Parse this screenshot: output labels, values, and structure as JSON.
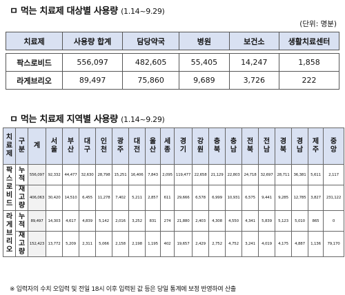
{
  "section1": {
    "title": "ㅁ 먹는 치료제 대상별 사용량",
    "period": "(1.14~9.29)",
    "unit": "(단위: 명분)",
    "headers": [
      "치료제",
      "사용량 합계",
      "담당약국",
      "병원",
      "보건소",
      "생활치료센터"
    ],
    "rows": [
      {
        "name": "팍스로비드",
        "cells": [
          "556,097",
          "482,605",
          "55,405",
          "14,247",
          "1,858"
        ]
      },
      {
        "name": "라게브리오",
        "cells": [
          "89,497",
          "75,860",
          "9,689",
          "3,726",
          "222"
        ]
      }
    ]
  },
  "section2": {
    "title": "ㅁ 먹는 치료제 지역별 사용량",
    "period": "(1.14~9.29)",
    "headers": [
      "치료제",
      "구분",
      "계",
      "서울",
      "부산",
      "대구",
      "인천",
      "광주",
      "대전",
      "울산",
      "세종",
      "경기",
      "강원",
      "충북",
      "충남",
      "전북",
      "전남",
      "경북",
      "경남",
      "제주",
      "중앙"
    ],
    "groups": [
      {
        "drug": "팍스로비드",
        "rows": [
          {
            "kind": "누적",
            "cells": [
              "556,097",
              "92,332",
              "44,477",
              "32,630",
              "28,798",
              "15,251",
              "16,406",
              "7,843",
              "2,095",
              "119,477",
              "22,658",
              "21,129",
              "22,803",
              "24,718",
              "32,697",
              "28,711",
              "36,381",
              "5,611",
              "2,117"
            ]
          },
          {
            "kind": "재고량",
            "cells": [
              "406,063",
              "30,420",
              "14,510",
              "6,455",
              "11,278",
              "7,402",
              "5,211",
              "2,857",
              "611",
              "29,666",
              "6,578",
              "6,999",
              "10,931",
              "6,575",
              "9,441",
              "9,285",
              "12,785",
              "3,827",
              "231,122"
            ]
          }
        ]
      },
      {
        "drug": "라게브리오",
        "rows": [
          {
            "kind": "누적",
            "cells": [
              "89,497",
              "14,303",
              "4,617",
              "4,839",
              "5,142",
              "2,016",
              "3,252",
              "831",
              "274",
              "21,880",
              "2,403",
              "4,308",
              "4,550",
              "4,341",
              "5,839",
              "5,123",
              "5,010",
              "865",
              "0"
            ]
          },
          {
            "kind": "재고량",
            "cells": [
              "152,423",
              "13,772",
              "5,209",
              "2,311",
              "5,066",
              "2,158",
              "2,198",
              "1,195",
              "402",
              "19,657",
              "2,429",
              "2,752",
              "4,752",
              "3,241",
              "4,019",
              "4,175",
              "4,887",
              "1,136",
              "79,170"
            ]
          }
        ]
      }
    ]
  },
  "note": "※ 입력자의 수치 오입력 및 전일 18시 이후 입력된 값 등은 당일 통계에 보정 반영하여 산출"
}
